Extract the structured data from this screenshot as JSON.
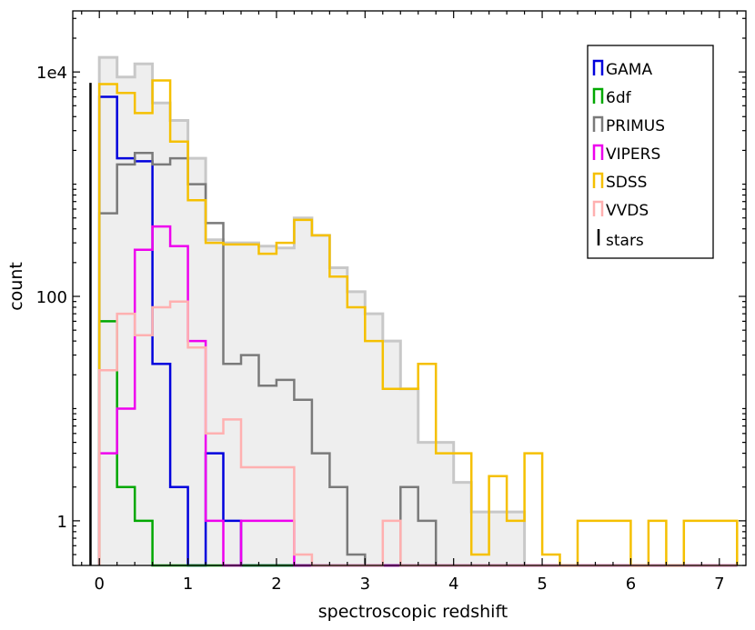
{
  "chart_data": {
    "type": "histogram",
    "title": "",
    "xlabel": "spectroscopic redshift",
    "ylabel": "count",
    "x_scale": "linear",
    "y_scale": "log",
    "xlim": [
      -0.3,
      7.3
    ],
    "ylim": [
      0.4,
      35000
    ],
    "bin_edges": [
      0.0,
      0.2,
      0.4,
      0.6,
      0.8,
      1.0,
      1.2,
      1.4,
      1.6,
      1.8,
      2.0,
      2.2,
      2.4,
      2.6,
      2.8,
      3.0,
      3.2,
      3.4,
      3.6,
      3.8,
      4.0,
      4.2,
      4.4,
      4.6,
      4.8,
      5.0,
      5.2,
      5.4,
      5.6,
      5.8,
      6.0,
      6.2,
      6.4,
      6.6,
      6.8,
      7.0,
      7.2
    ],
    "x_ticks": [
      0,
      1,
      2,
      3,
      4,
      5,
      6,
      7
    ],
    "y_ticks": [
      {
        "value": 1,
        "label": "1"
      },
      {
        "value": 100,
        "label": "100"
      },
      {
        "value": 10000,
        "label": "1e4"
      }
    ],
    "legend_position": "top-right",
    "total": {
      "name": "",
      "color": "#c8c8c8",
      "fill": "#eeeeee",
      "values": [
        13500,
        9000,
        11800,
        5300,
        3700,
        1700,
        320,
        300,
        300,
        280,
        270,
        500,
        350,
        180,
        110,
        70,
        40,
        15,
        5,
        5,
        2.2,
        1.2,
        1.2,
        1.2,
        0,
        0,
        0,
        0,
        0,
        0,
        0,
        0,
        0,
        0,
        0,
        0
      ]
    },
    "series": [
      {
        "name": "GAMA",
        "color": "#0000dd",
        "values": [
          6000,
          1700,
          1600,
          25,
          2,
          0,
          4,
          1,
          0,
          0,
          0,
          0,
          0,
          0,
          0,
          0,
          0,
          0,
          0,
          0,
          0,
          0,
          0,
          0,
          0,
          0,
          0,
          0,
          0,
          0,
          0,
          0,
          0,
          0,
          0,
          0
        ]
      },
      {
        "name": "6df",
        "color": "#00a800",
        "values": [
          60,
          2,
          1,
          0,
          0,
          0,
          0,
          0,
          0,
          0,
          0,
          0,
          0,
          0,
          0,
          0,
          0,
          0,
          0,
          0,
          0,
          0,
          0,
          0,
          0,
          0,
          0,
          0,
          0,
          0,
          0,
          0,
          0,
          0,
          0,
          0
        ]
      },
      {
        "name": "PRIMUS",
        "color": "#7a7a7a",
        "values": [
          550,
          1500,
          1900,
          1500,
          1700,
          1000,
          450,
          25,
          30,
          16,
          18,
          12,
          4,
          2,
          0.5,
          0,
          0,
          2,
          1,
          0,
          0,
          0,
          0,
          0,
          0,
          0,
          0,
          0,
          0,
          0,
          0,
          0,
          0,
          0,
          0,
          0
        ]
      },
      {
        "name": "VIPERS",
        "color": "#ee00ee",
        "values": [
          4,
          10,
          260,
          420,
          280,
          40,
          1,
          0,
          1,
          1,
          1,
          0,
          0,
          0,
          0,
          0,
          0,
          0,
          0,
          0,
          0,
          0,
          0,
          0,
          0,
          0,
          0,
          0,
          0,
          0,
          0,
          0,
          0,
          0,
          0,
          0
        ]
      },
      {
        "name": "SDSS",
        "color": "#f5c000",
        "values": [
          7800,
          6500,
          4300,
          8400,
          2400,
          720,
          300,
          290,
          290,
          240,
          300,
          480,
          350,
          150,
          80,
          40,
          15,
          15,
          25,
          4,
          4,
          0.5,
          2.5,
          1,
          4,
          0.5,
          0,
          1,
          1,
          1,
          0,
          1,
          0,
          1,
          1,
          1
        ]
      },
      {
        "name": "VVDS",
        "color": "#ffb0b0",
        "values": [
          22,
          70,
          45,
          80,
          90,
          35,
          6,
          8,
          3,
          3,
          3,
          0.5,
          0,
          0,
          0,
          0,
          1,
          0,
          0,
          0,
          0,
          0,
          0,
          0,
          0,
          0,
          0,
          0,
          0,
          0,
          0,
          0,
          0,
          0,
          0,
          0
        ]
      },
      {
        "name": "stars",
        "color": "#000000",
        "x": -0.1,
        "values": [
          8000
        ]
      }
    ]
  }
}
